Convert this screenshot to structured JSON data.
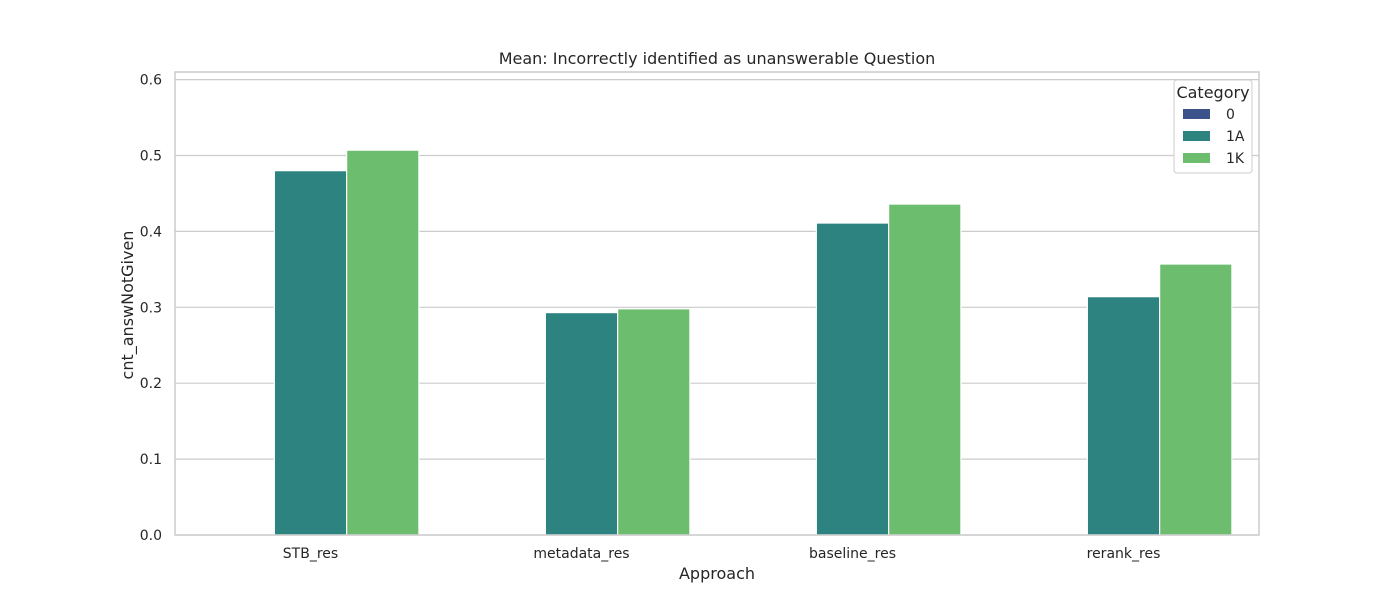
{
  "chart_data": {
    "type": "bar",
    "title": "Mean: Incorrectly identified as unanswerable Question",
    "xlabel": "Approach",
    "ylabel": "cnt_answNotGiven",
    "categories": [
      "STB_res",
      "metadata_res",
      "baseline_res",
      "rerank_res"
    ],
    "series": [
      {
        "name": "0",
        "color": "#3b528b",
        "values": [
          0,
          0,
          0,
          0
        ]
      },
      {
        "name": "1A",
        "color": "#2c8380",
        "values": [
          0.48,
          0.293,
          0.411,
          0.314
        ]
      },
      {
        "name": "1K",
        "color": "#6cbd6d",
        "values": [
          0.507,
          0.298,
          0.436,
          0.357
        ]
      }
    ],
    "ylim": [
      0,
      0.61
    ],
    "yticks": [
      "0.0",
      "0.1",
      "0.2",
      "0.3",
      "0.4",
      "0.5",
      "0.6"
    ],
    "grid": true,
    "legend": {
      "title": "Category",
      "placement": "top-right"
    }
  }
}
